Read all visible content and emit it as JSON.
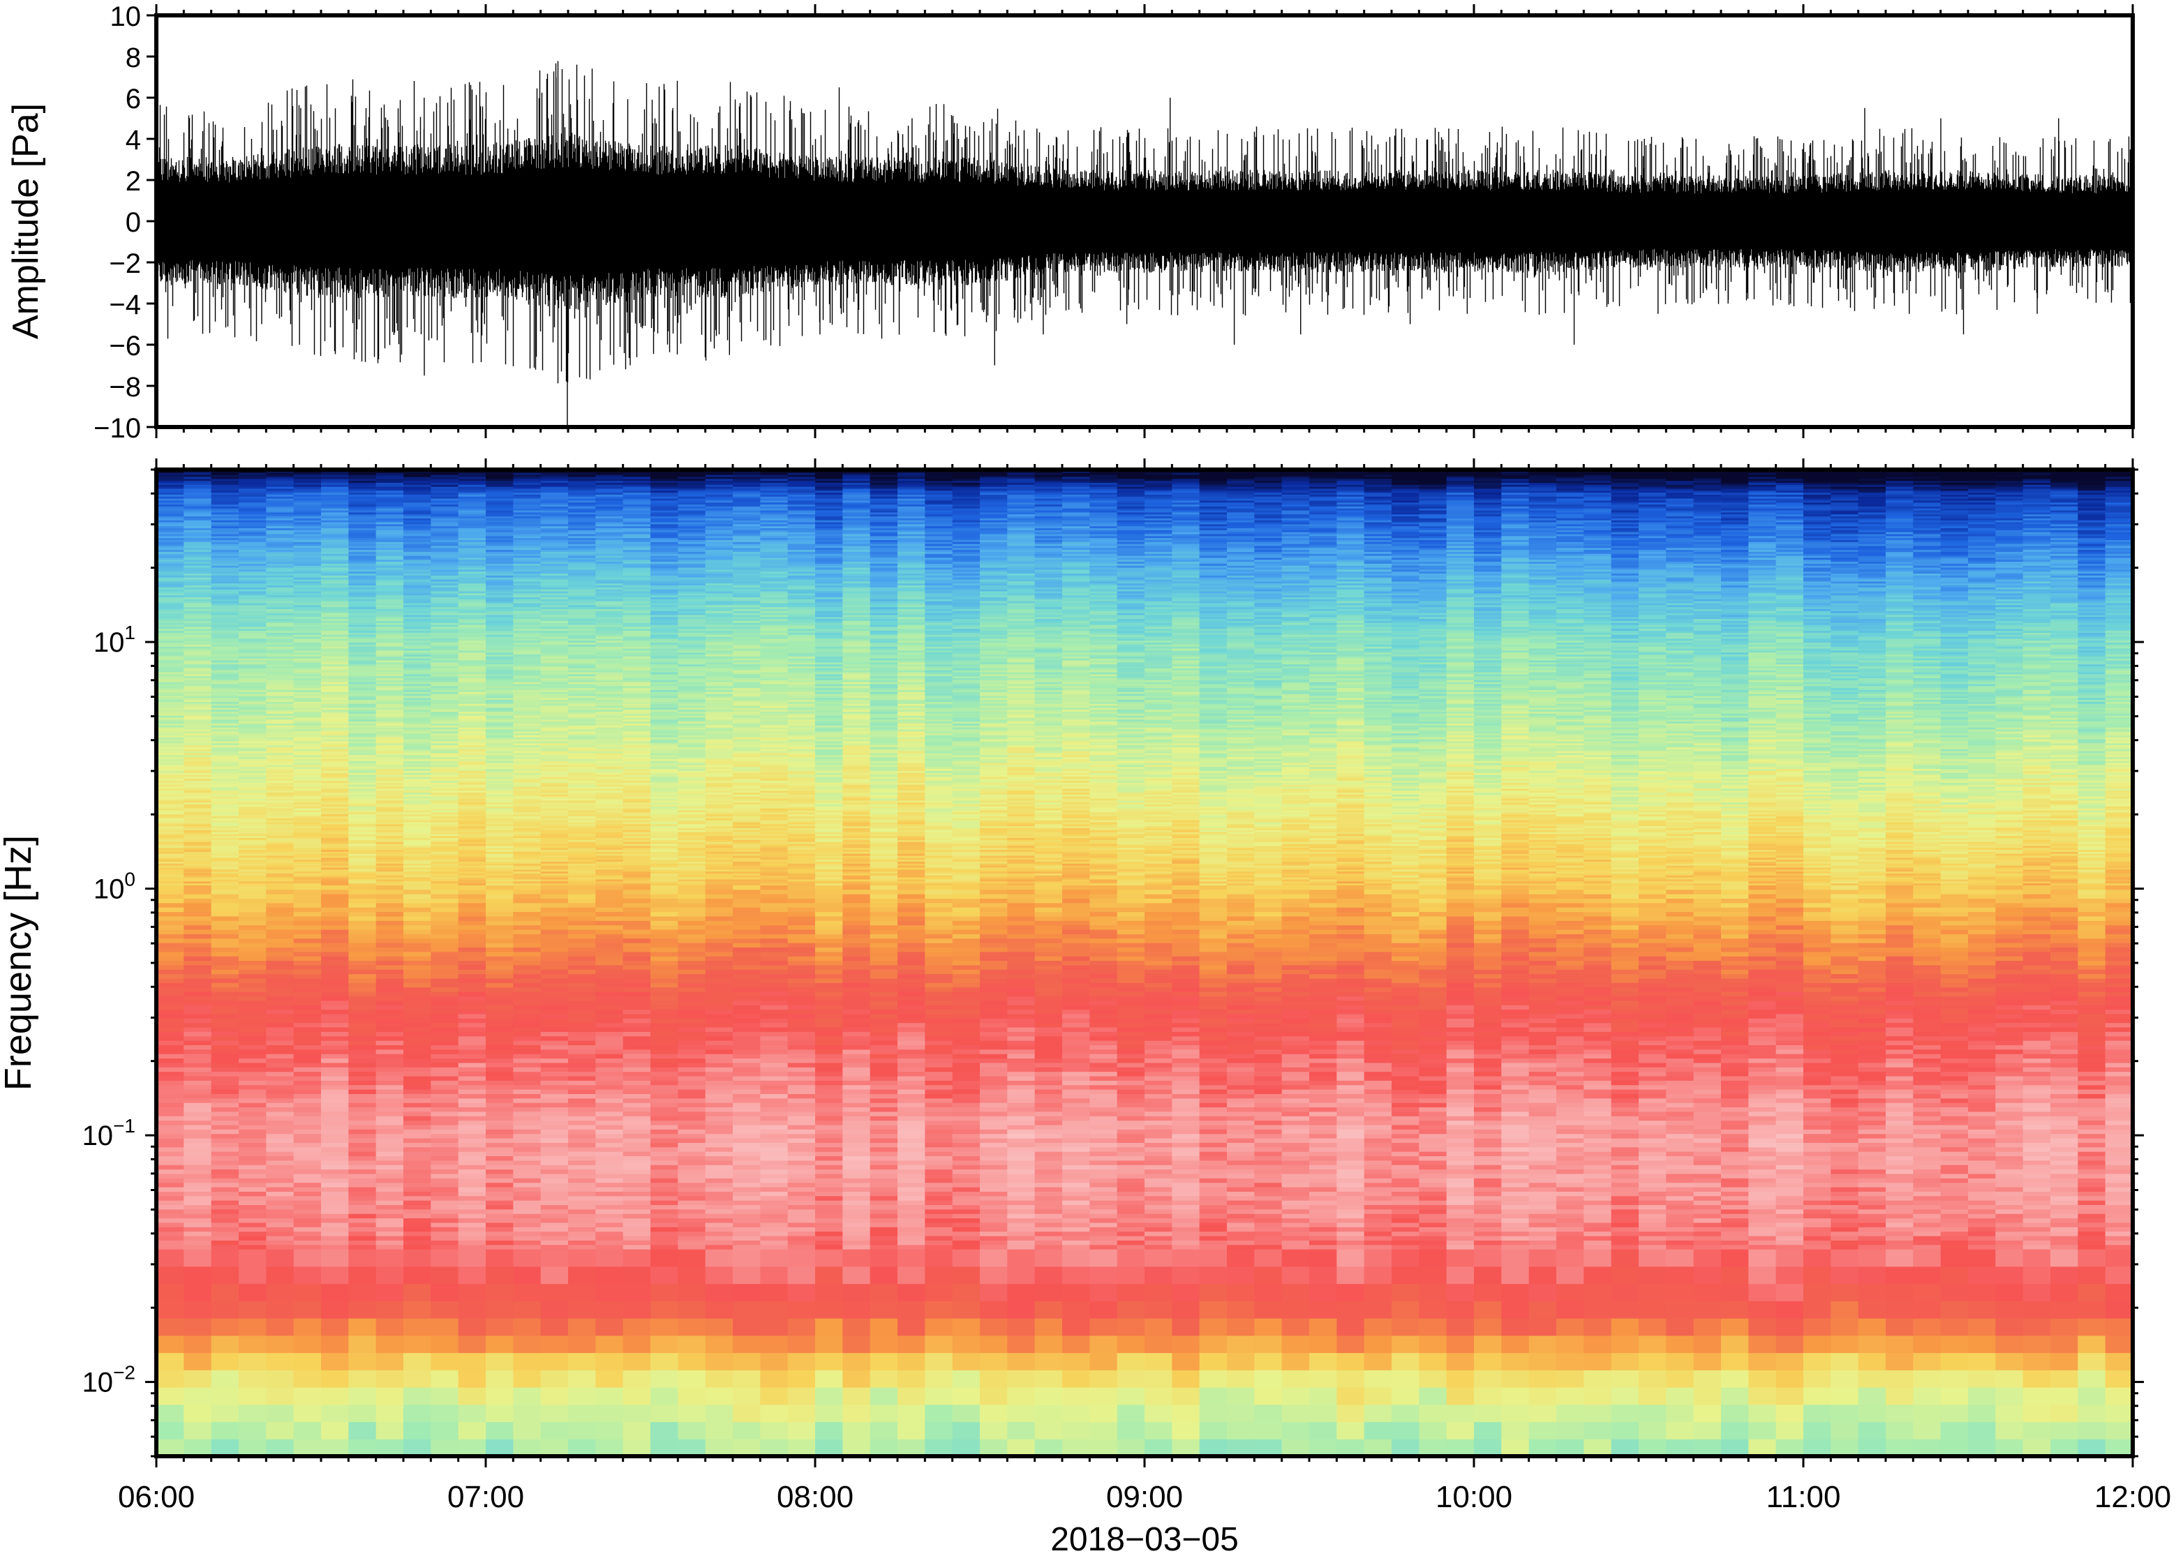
{
  "chart_data": [
    {
      "type": "line",
      "panel": "waveform",
      "ylabel": "Amplitude [Pa]",
      "ylim": [
        -10,
        10
      ],
      "yticks": [
        -10,
        -8,
        -6,
        -4,
        -2,
        0,
        2,
        4,
        6,
        8,
        10
      ],
      "ytick_labels": [
        "−10",
        "−8",
        "−6",
        "−4",
        "−2",
        "0",
        "2",
        "4",
        "6",
        "8",
        "10"
      ],
      "xlim": [
        "06:00",
        "12:00"
      ],
      "grid": false,
      "envelope": {
        "x": [
          "06:00",
          "06:15",
          "06:30",
          "06:45",
          "07:00",
          "07:15",
          "07:30",
          "07:45",
          "08:00",
          "08:15",
          "08:30",
          "08:45",
          "09:00",
          "09:15",
          "09:30",
          "09:45",
          "10:00",
          "10:15",
          "10:30",
          "10:45",
          "11:00",
          "11:15",
          "11:30",
          "11:45",
          "12:00"
        ],
        "max": [
          4.5,
          4.0,
          5.5,
          6.0,
          4.5,
          7.0,
          5.5,
          4.5,
          6.5,
          5.0,
          4.0,
          4.5,
          6.0,
          4.0,
          4.5,
          4.5,
          4.5,
          3.5,
          4.0,
          4.0,
          3.5,
          5.5,
          5.0,
          5.0,
          4.0
        ],
        "min": [
          -6.0,
          -5.0,
          -6.0,
          -7.5,
          -5.0,
          -10.0,
          -7.0,
          -6.5,
          -5.5,
          -5.0,
          -7.0,
          -5.5,
          -5.0,
          -6.0,
          -5.5,
          -5.0,
          -4.5,
          -6.0,
          -4.5,
          -4.0,
          -4.0,
          -4.5,
          -5.5,
          -4.5,
          -4.0
        ],
        "typical": [
          2.5,
          2.5,
          3.0,
          3.0,
          3.0,
          3.5,
          3.0,
          3.0,
          2.5,
          2.5,
          2.5,
          2.0,
          2.0,
          2.0,
          2.0,
          2.0,
          2.0,
          2.0,
          1.8,
          1.8,
          1.8,
          2.0,
          2.0,
          1.8,
          1.8
        ]
      }
    },
    {
      "type": "heatmap",
      "panel": "spectrogram",
      "ylabel": "Frequency [Hz]",
      "yscale": "log",
      "ylim": [
        0.005,
        50
      ],
      "yticks": [
        0.01,
        0.1,
        1,
        10
      ],
      "ytick_labels": [
        {
          "base": "10",
          "exp": "−2"
        },
        {
          "base": "10",
          "exp": "−1"
        },
        {
          "base": "10",
          "exp": "0"
        },
        {
          "base": "10",
          "exp": "1"
        }
      ],
      "xlabel": "2018−03−05",
      "xticks": [
        "06:00",
        "07:00",
        "08:00",
        "09:00",
        "10:00",
        "11:00",
        "12:00"
      ],
      "xlim": [
        "06:00",
        "12:00"
      ],
      "colormap": [
        "#08082e",
        "#0a2a9e",
        "#1e64e0",
        "#4da8ee",
        "#6fd6d6",
        "#a6ecb0",
        "#e8f38c",
        "#f7d35a",
        "#f89a44",
        "#f26450",
        "#f75454",
        "#f9a0a0",
        "#fbc8c8"
      ],
      "color_profile_by_frequency": {
        "freq_hz": [
          0.005,
          0.007,
          0.01,
          0.015,
          0.02,
          0.03,
          0.05,
          0.1,
          0.2,
          0.35,
          0.5,
          1,
          2,
          5,
          10,
          20,
          40,
          50
        ],
        "level": [
          0.42,
          0.46,
          0.53,
          0.68,
          0.78,
          0.86,
          0.9,
          0.92,
          0.86,
          0.8,
          0.72,
          0.6,
          0.54,
          0.46,
          0.42,
          0.3,
          0.17,
          0.0
        ]
      }
    }
  ]
}
